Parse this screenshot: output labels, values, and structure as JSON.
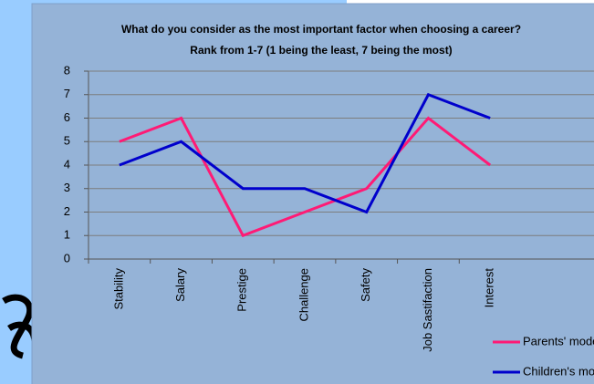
{
  "chart_data": {
    "type": "line",
    "title": "What do you consider  as the most important factor when choosing  a career?",
    "subtitle": "Rank from 1-7 (1 being the least, 7 being the most)",
    "categories": [
      "Stability",
      "Salary",
      "Prestige",
      "Challenge",
      "Safety",
      "Job Sastifaction",
      "Interest"
    ],
    "series": [
      {
        "name": "Parents' mode",
        "color": "#ff1a75",
        "values": [
          5,
          6,
          1,
          2,
          3,
          6,
          4
        ]
      },
      {
        "name": "Children's mode",
        "color": "#0000cc",
        "values": [
          4,
          5,
          3,
          3,
          2,
          7,
          6
        ]
      }
    ],
    "ylim": [
      0,
      8
    ],
    "yticks": [
      0,
      1,
      2,
      3,
      4,
      5,
      6,
      7,
      8
    ],
    "grid": true,
    "legend": "bottom-right"
  }
}
